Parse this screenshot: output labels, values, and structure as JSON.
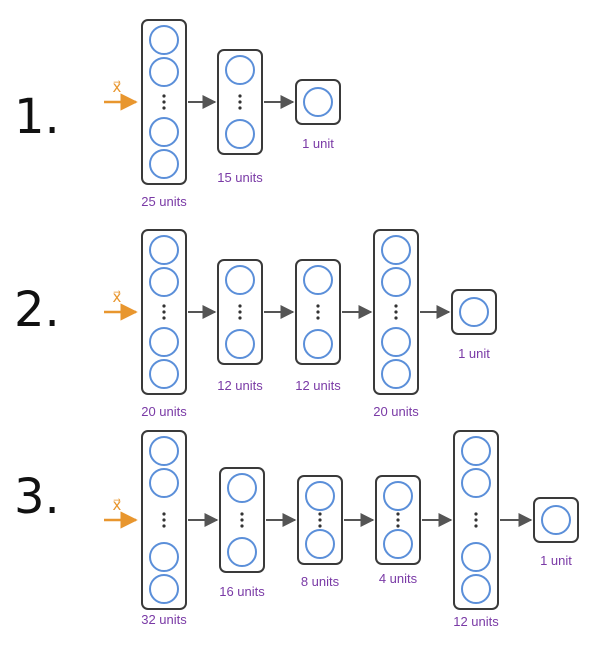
{
  "colors": {
    "layer_border": "#3a3a3a",
    "neuron": "#5b8fd9",
    "arrow": "#555555",
    "input_arrow": "#e8962e",
    "input_label": "#e8962e",
    "unit_label": "#7a3aa6",
    "number": "#111111"
  },
  "networks": [
    {
      "number": "1.",
      "input_label": "x⃗",
      "layers": [
        {
          "label": "25 units",
          "neurons_top": 2,
          "neurons_bottom": 2,
          "ellipsis": true
        },
        {
          "label": "15 units",
          "neurons_top": 1,
          "neurons_bottom": 1,
          "ellipsis": true
        },
        {
          "label": "1 unit",
          "neurons_top": 1,
          "neurons_bottom": 0,
          "ellipsis": false
        }
      ]
    },
    {
      "number": "2.",
      "input_label": "x⃗",
      "layers": [
        {
          "label": "20 units",
          "neurons_top": 2,
          "neurons_bottom": 2,
          "ellipsis": true
        },
        {
          "label": "12 units",
          "neurons_top": 1,
          "neurons_bottom": 1,
          "ellipsis": true
        },
        {
          "label": "12 units",
          "neurons_top": 1,
          "neurons_bottom": 1,
          "ellipsis": true
        },
        {
          "label": "20 units",
          "neurons_top": 2,
          "neurons_bottom": 2,
          "ellipsis": true
        },
        {
          "label": "1 unit",
          "neurons_top": 1,
          "neurons_bottom": 0,
          "ellipsis": false
        }
      ]
    },
    {
      "number": "3.",
      "input_label": "x⃗",
      "layers": [
        {
          "label": "32 units",
          "neurons_top": 2,
          "neurons_bottom": 2,
          "ellipsis": true
        },
        {
          "label": "16 units",
          "neurons_top": 1,
          "neurons_bottom": 1,
          "ellipsis": true
        },
        {
          "label": "8 units",
          "neurons_top": 1,
          "neurons_bottom": 1,
          "ellipsis": true
        },
        {
          "label": "4 units",
          "neurons_top": 1,
          "neurons_bottom": 1,
          "ellipsis": true
        },
        {
          "label": "12 units",
          "neurons_top": 2,
          "neurons_bottom": 2,
          "ellipsis": true
        },
        {
          "label": "1 unit",
          "neurons_top": 1,
          "neurons_bottom": 0,
          "ellipsis": false
        }
      ]
    }
  ]
}
